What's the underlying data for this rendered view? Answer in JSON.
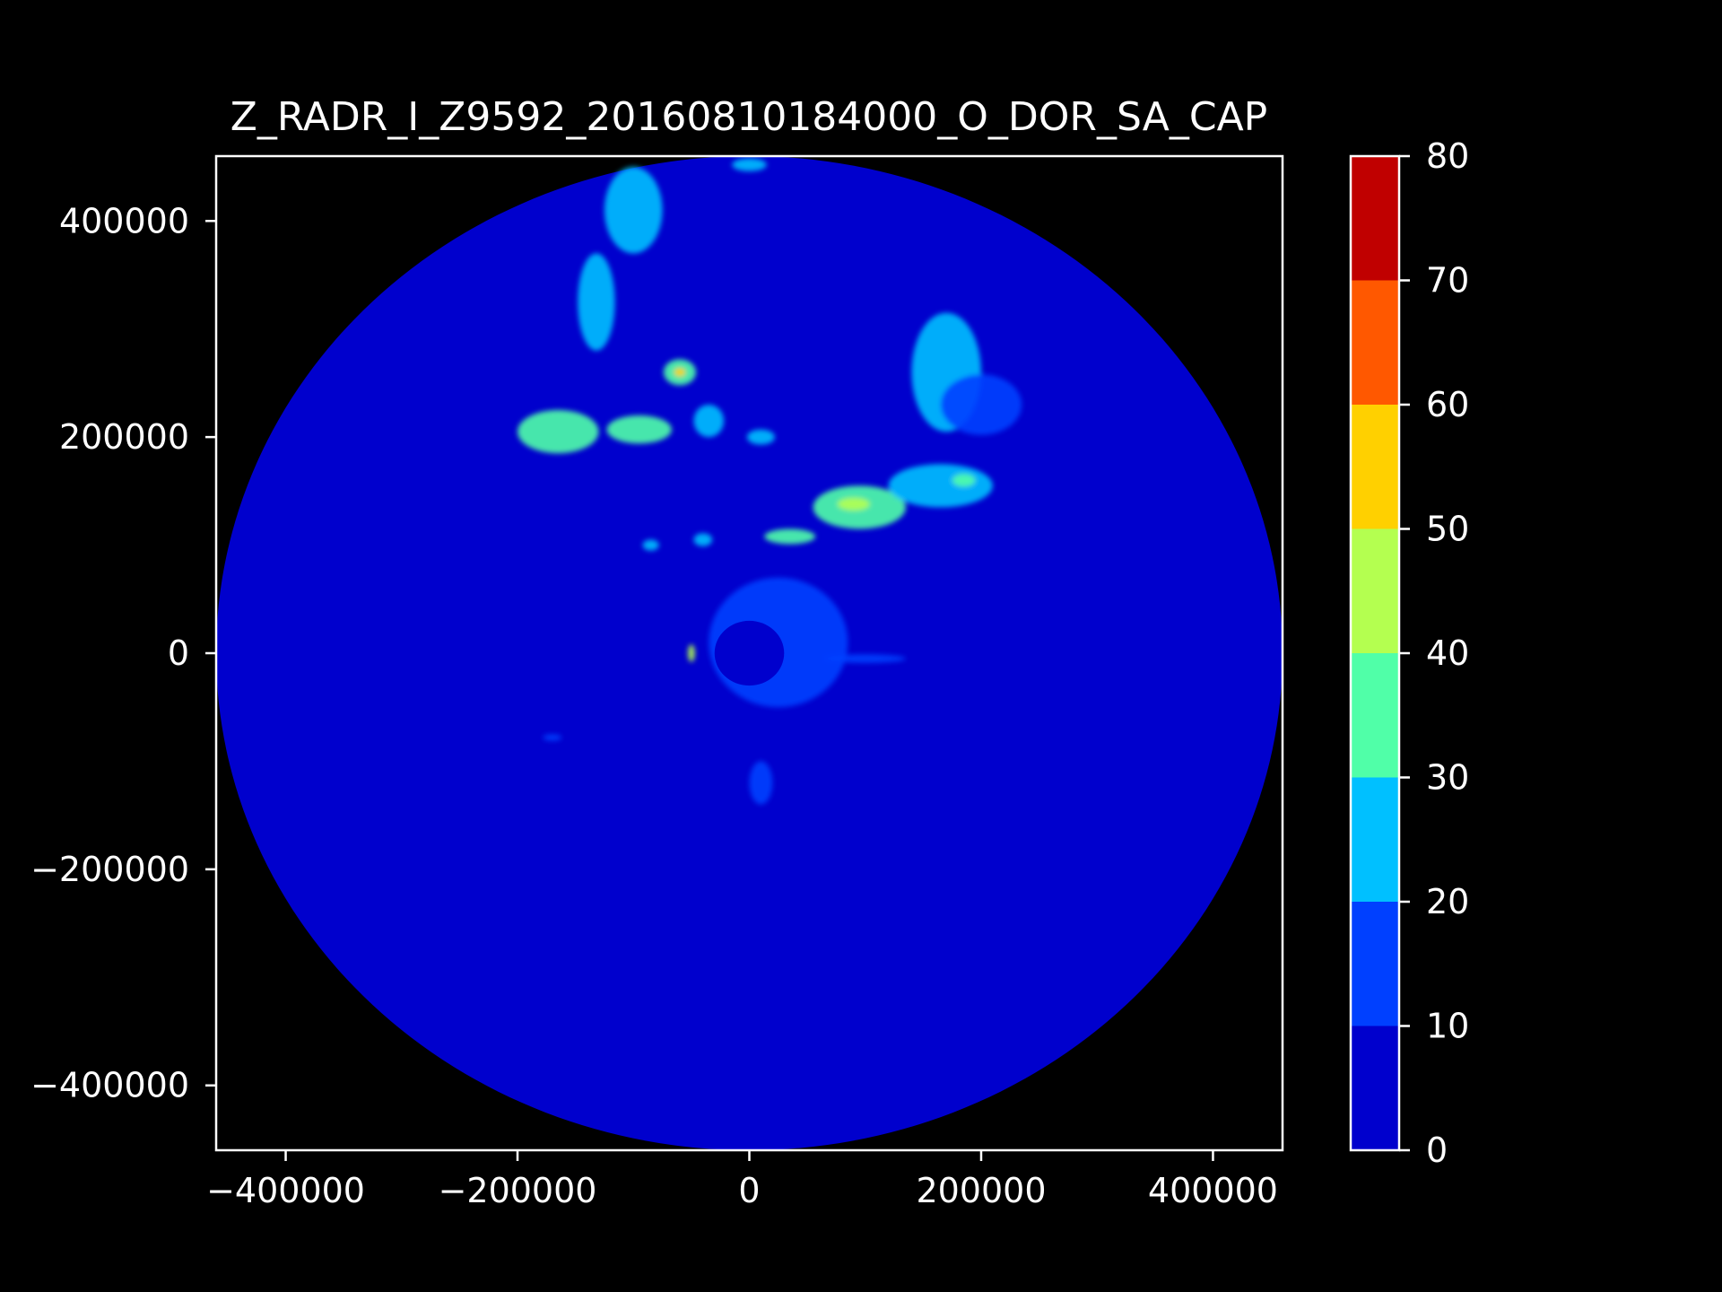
{
  "chart_data": {
    "type": "heatmap",
    "title": "Z_RADR_I_Z9592_20160810184000_O_DOR_SA_CAP",
    "xlabel": "",
    "ylabel": "",
    "xlim": [
      -460000,
      460000
    ],
    "ylim": [
      -460000,
      460000
    ],
    "x_ticks": [
      -400000,
      -200000,
      0,
      200000,
      400000
    ],
    "y_ticks": [
      -400000,
      -200000,
      0,
      200000,
      400000
    ],
    "x_tick_labels": [
      "−400000",
      "−200000",
      "0",
      "200000",
      "400000"
    ],
    "y_tick_labels": [
      "−400000",
      "−200000",
      "0",
      "200000",
      "400000"
    ],
    "grid": false,
    "background_color": "#000000",
    "text_color": "#ffffff",
    "radar_range": 460000,
    "colorbar": {
      "levels": [
        0,
        10,
        20,
        30,
        40,
        50,
        60,
        70,
        80
      ],
      "tick_labels": [
        "0",
        "10",
        "20",
        "30",
        "40",
        "50",
        "60",
        "70",
        "80"
      ],
      "colors": [
        "#0000cd",
        "#0040ff",
        "#00c0ff",
        "#50ffa8",
        "#b4ff50",
        "#ffd000",
        "#ff5800",
        "#c00000"
      ]
    },
    "echo_regions": [
      {
        "x": -100000,
        "y": 410000,
        "rx": 25000,
        "ry": 40000,
        "level": 2
      },
      {
        "x": 0,
        "y": 452000,
        "rx": 15000,
        "ry": 6000,
        "level": 2
      },
      {
        "x": -132000,
        "y": 325000,
        "rx": 16000,
        "ry": 45000,
        "level": 2
      },
      {
        "x": -60000,
        "y": 260000,
        "rx": 14000,
        "ry": 12000,
        "level": 3
      },
      {
        "x": -60000,
        "y": 260000,
        "rx": 5000,
        "ry": 4000,
        "level": 5
      },
      {
        "x": -165000,
        "y": 205000,
        "rx": 35000,
        "ry": 20000,
        "level": 3
      },
      {
        "x": -95000,
        "y": 207000,
        "rx": 28000,
        "ry": 13000,
        "level": 3
      },
      {
        "x": -35000,
        "y": 215000,
        "rx": 13000,
        "ry": 15000,
        "level": 2
      },
      {
        "x": 10000,
        "y": 200000,
        "rx": 12000,
        "ry": 7000,
        "level": 2
      },
      {
        "x": 170000,
        "y": 260000,
        "rx": 30000,
        "ry": 55000,
        "level": 2
      },
      {
        "x": 200000,
        "y": 230000,
        "rx": 35000,
        "ry": 28000,
        "level": 1
      },
      {
        "x": 95000,
        "y": 135000,
        "rx": 40000,
        "ry": 20000,
        "level": 3
      },
      {
        "x": 90000,
        "y": 138000,
        "rx": 14000,
        "ry": 6000,
        "level": 4
      },
      {
        "x": 165000,
        "y": 155000,
        "rx": 45000,
        "ry": 20000,
        "level": 2
      },
      {
        "x": 185000,
        "y": 160000,
        "rx": 10000,
        "ry": 6000,
        "level": 3
      },
      {
        "x": 35000,
        "y": 108000,
        "rx": 22000,
        "ry": 7000,
        "level": 3
      },
      {
        "x": -40000,
        "y": 105000,
        "rx": 8000,
        "ry": 6000,
        "level": 2
      },
      {
        "x": -85000,
        "y": 100000,
        "rx": 7000,
        "ry": 5000,
        "level": 2
      },
      {
        "x": 25000,
        "y": 10000,
        "rx": 60000,
        "ry": 60000,
        "level": 1
      },
      {
        "x": -50000,
        "y": 0,
        "rx": 3000,
        "ry": 8000,
        "level": 4
      },
      {
        "x": 10000,
        "y": -120000,
        "rx": 10000,
        "ry": 20000,
        "level": 1
      },
      {
        "x": 100000,
        "y": -5000,
        "rx": 35000,
        "ry": 4000,
        "level": 1
      },
      {
        "x": -170000,
        "y": -78000,
        "rx": 8000,
        "ry": 3000,
        "level": 1
      }
    ]
  }
}
